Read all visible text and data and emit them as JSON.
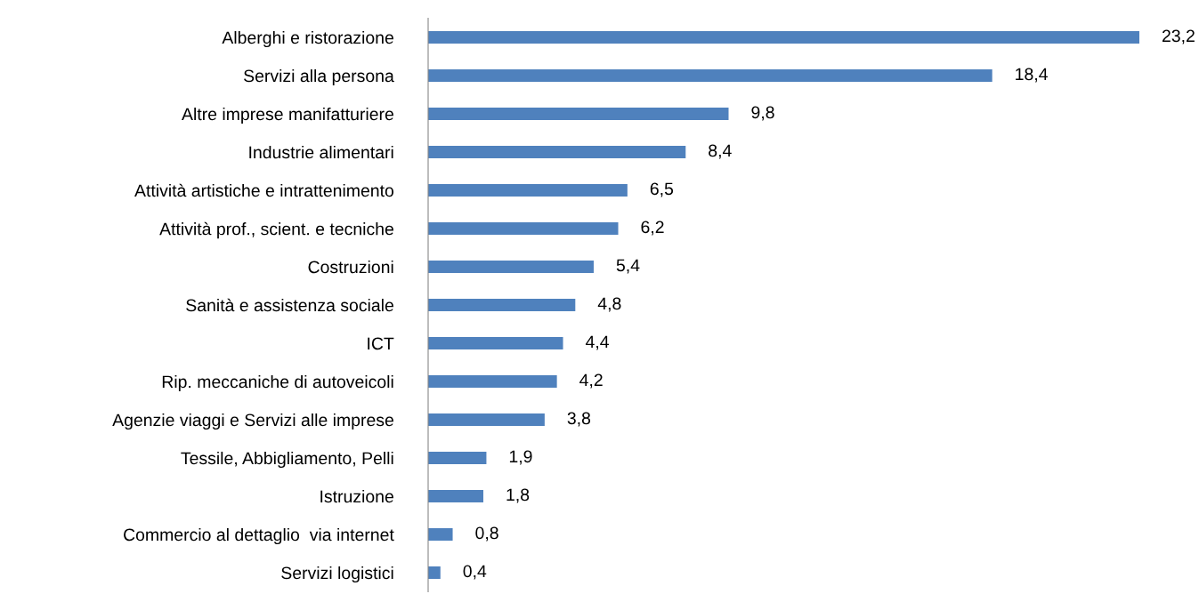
{
  "chart_data": {
    "type": "bar",
    "orientation": "horizontal",
    "categories": [
      "Alberghi e ristorazione",
      "Servizi alla persona",
      "Altre imprese manifatturiere",
      "Industrie alimentari",
      "Attività artistiche e intrattenimento",
      "Attività prof., scient. e tecniche",
      "Costruzioni",
      "Sanità e assistenza sociale",
      "ICT",
      "Rip. meccaniche di autoveicoli",
      "Agenzie viaggi e Servizi alle imprese",
      "Tessile, Abbigliamento, Pelli",
      "Istruzione",
      "Commercio al dettaglio  via internet",
      "Servizi logistici"
    ],
    "values": [
      23.2,
      18.4,
      9.8,
      8.4,
      6.5,
      6.2,
      5.4,
      4.8,
      4.4,
      4.2,
      3.8,
      1.9,
      1.8,
      0.8,
      0.4
    ],
    "value_labels": [
      "23,2",
      "18,4",
      "9,8",
      "8,4",
      "6,5",
      "6,2",
      "5,4",
      "4,8",
      "4,4",
      "4,2",
      "3,8",
      "1,9",
      "1,8",
      "0,8",
      "0,4"
    ],
    "color": "#4f81bd",
    "tick_labels": "y",
    "grid": false,
    "legend": false
  }
}
